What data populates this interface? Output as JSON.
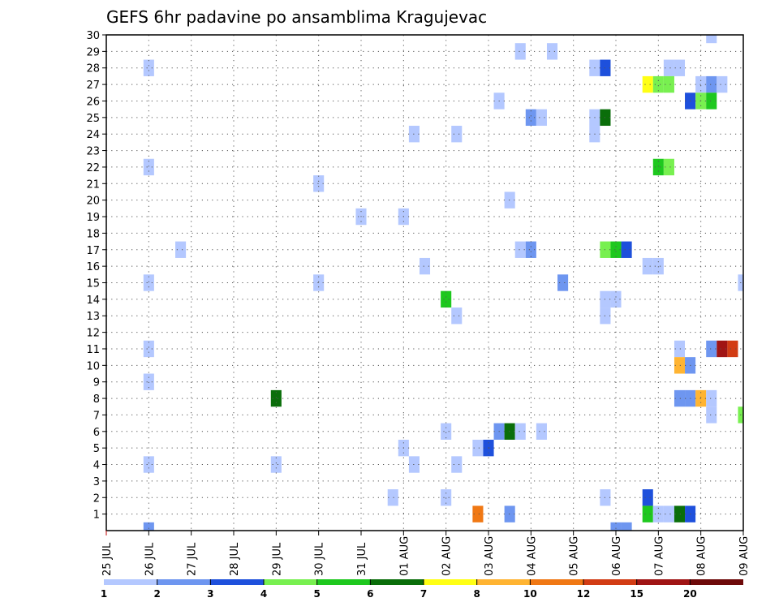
{
  "chart_data": {
    "type": "heatmap",
    "title": "GEFS 6hr padavine po ansamblima Kragujevac",
    "x_tick_labels": [
      "25 JUL",
      "26 JUL",
      "27 JUL",
      "28 JUL",
      "29 JUL",
      "30 JUL",
      "31 JUL",
      "01 AUG",
      "02 AUG",
      "03 AUG",
      "04 AUG",
      "05 AUG",
      "06 AUG",
      "07 AUG",
      "08 AUG",
      "09 AUG"
    ],
    "y_tick_labels": [
      "1",
      "2",
      "3",
      "4",
      "5",
      "6",
      "7",
      "8",
      "9",
      "10",
      "11",
      "12",
      "13",
      "14",
      "15",
      "16",
      "17",
      "18",
      "19",
      "20",
      "21",
      "22",
      "23",
      "24",
      "25",
      "26",
      "27",
      "28",
      "29",
      "30"
    ],
    "x_range_days": [
      0,
      15
    ],
    "y_range_members": [
      0,
      30
    ],
    "grid": true,
    "legend": {
      "placement": "bottom",
      "labels": [
        "1",
        "2",
        "3",
        "4",
        "5",
        "6",
        "7",
        "8",
        "10",
        "12",
        "15",
        "20"
      ],
      "colors": [
        "#b4c8ff",
        "#6e96f0",
        "#1e50dc",
        "#78f050",
        "#1ec81e",
        "#0a6e0a",
        "#ffff14",
        "#ffb432",
        "#f07814",
        "#d23c14",
        "#a01414",
        "#6e0a0a"
      ]
    },
    "cells": [
      {
        "day": 1.0,
        "member": 28,
        "level": 1
      },
      {
        "day": 1.0,
        "member": 22,
        "level": 1
      },
      {
        "day": 1.0,
        "member": 15,
        "level": 1
      },
      {
        "day": 1.0,
        "member": 11,
        "level": 1
      },
      {
        "day": 1.0,
        "member": 9,
        "level": 1
      },
      {
        "day": 1.0,
        "member": 4,
        "level": 1
      },
      {
        "day": 1.0,
        "member": 0,
        "level": 2
      },
      {
        "day": 1.75,
        "member": 17,
        "level": 1
      },
      {
        "day": 4.0,
        "member": 8,
        "level": 6
      },
      {
        "day": 4.0,
        "member": 4,
        "level": 1
      },
      {
        "day": 5.0,
        "member": 21,
        "level": 1
      },
      {
        "day": 5.0,
        "member": 15,
        "level": 1
      },
      {
        "day": 6.0,
        "member": 19,
        "level": 1
      },
      {
        "day": 6.75,
        "member": 2,
        "level": 1
      },
      {
        "day": 7.0,
        "member": 19,
        "level": 1
      },
      {
        "day": 7.0,
        "member": 5,
        "level": 1
      },
      {
        "day": 7.25,
        "member": 24,
        "level": 1
      },
      {
        "day": 7.25,
        "member": 4,
        "level": 1
      },
      {
        "day": 7.5,
        "member": 16,
        "level": 1
      },
      {
        "day": 8.0,
        "member": 14,
        "level": 5
      },
      {
        "day": 8.0,
        "member": 6,
        "level": 1
      },
      {
        "day": 8.0,
        "member": 2,
        "level": 1
      },
      {
        "day": 8.25,
        "member": 24,
        "level": 1
      },
      {
        "day": 8.25,
        "member": 13,
        "level": 1
      },
      {
        "day": 8.25,
        "member": 4,
        "level": 1
      },
      {
        "day": 8.75,
        "member": 5,
        "level": 1
      },
      {
        "day": 8.75,
        "member": 1,
        "level": 9
      },
      {
        "day": 9.0,
        "member": 5,
        "level": 3
      },
      {
        "day": 9.25,
        "member": 26,
        "level": 1
      },
      {
        "day": 9.25,
        "member": 6,
        "level": 2
      },
      {
        "day": 9.5,
        "member": 20,
        "level": 1
      },
      {
        "day": 9.5,
        "member": 6,
        "level": 6
      },
      {
        "day": 9.5,
        "member": 1,
        "level": 2
      },
      {
        "day": 9.75,
        "member": 29,
        "level": 1
      },
      {
        "day": 9.75,
        "member": 17,
        "level": 1
      },
      {
        "day": 9.75,
        "member": 6,
        "level": 1
      },
      {
        "day": 10.0,
        "member": 25,
        "level": 2
      },
      {
        "day": 10.0,
        "member": 17,
        "level": 2
      },
      {
        "day": 10.25,
        "member": 25,
        "level": 1
      },
      {
        "day": 10.25,
        "member": 6,
        "level": 1
      },
      {
        "day": 10.5,
        "member": 29,
        "level": 1
      },
      {
        "day": 10.75,
        "member": 15,
        "level": 2
      },
      {
        "day": 11.5,
        "member": 28,
        "level": 1
      },
      {
        "day": 11.5,
        "member": 25,
        "level": 1
      },
      {
        "day": 11.5,
        "member": 24,
        "level": 1
      },
      {
        "day": 11.75,
        "member": 28,
        "level": 3
      },
      {
        "day": 11.75,
        "member": 25,
        "level": 6
      },
      {
        "day": 11.75,
        "member": 17,
        "level": 4
      },
      {
        "day": 11.75,
        "member": 14,
        "level": 1
      },
      {
        "day": 11.75,
        "member": 13,
        "level": 1
      },
      {
        "day": 11.75,
        "member": 2,
        "level": 1
      },
      {
        "day": 12.0,
        "member": 17,
        "level": 5
      },
      {
        "day": 12.0,
        "member": 14,
        "level": 1
      },
      {
        "day": 12.0,
        "member": 0,
        "level": 2
      },
      {
        "day": 12.25,
        "member": 17,
        "level": 3
      },
      {
        "day": 12.25,
        "member": 0,
        "level": 2
      },
      {
        "day": 12.75,
        "member": 27,
        "level": 7
      },
      {
        "day": 12.75,
        "member": 16,
        "level": 1
      },
      {
        "day": 12.75,
        "member": 2,
        "level": 3
      },
      {
        "day": 12.75,
        "member": 1,
        "level": 5
      },
      {
        "day": 13.0,
        "member": 27,
        "level": 4
      },
      {
        "day": 13.0,
        "member": 22,
        "level": 5
      },
      {
        "day": 13.0,
        "member": 16,
        "level": 1
      },
      {
        "day": 13.0,
        "member": 1,
        "level": 1
      },
      {
        "day": 13.25,
        "member": 28,
        "level": 1
      },
      {
        "day": 13.25,
        "member": 27,
        "level": 4
      },
      {
        "day": 13.25,
        "member": 22,
        "level": 4
      },
      {
        "day": 13.25,
        "member": 1,
        "level": 1
      },
      {
        "day": 13.5,
        "member": 28,
        "level": 1
      },
      {
        "day": 13.5,
        "member": 11,
        "level": 1
      },
      {
        "day": 13.5,
        "member": 10,
        "level": 8
      },
      {
        "day": 13.5,
        "member": 8,
        "level": 2
      },
      {
        "day": 13.5,
        "member": 1,
        "level": 6
      },
      {
        "day": 13.75,
        "member": 26,
        "level": 3
      },
      {
        "day": 13.75,
        "member": 10,
        "level": 2
      },
      {
        "day": 13.75,
        "member": 8,
        "level": 2
      },
      {
        "day": 13.75,
        "member": 1,
        "level": 3
      },
      {
        "day": 14.0,
        "member": 27,
        "level": 1
      },
      {
        "day": 14.0,
        "member": 26,
        "level": 4
      },
      {
        "day": 14.0,
        "member": 8,
        "level": 8
      },
      {
        "day": 14.25,
        "member": 30,
        "level": 1
      },
      {
        "day": 14.25,
        "member": 27,
        "level": 2
      },
      {
        "day": 14.25,
        "member": 26,
        "level": 5
      },
      {
        "day": 14.25,
        "member": 11,
        "level": 2
      },
      {
        "day": 14.25,
        "member": 8,
        "level": 1
      },
      {
        "day": 14.25,
        "member": 7,
        "level": 1
      },
      {
        "day": 14.5,
        "member": 27,
        "level": 1
      },
      {
        "day": 14.5,
        "member": 11,
        "level": 11
      },
      {
        "day": 14.75,
        "member": 11,
        "level": 10
      },
      {
        "day": 15.0,
        "member": 15,
        "level": 1
      },
      {
        "day": 15.0,
        "member": 7,
        "level": 4
      }
    ]
  }
}
